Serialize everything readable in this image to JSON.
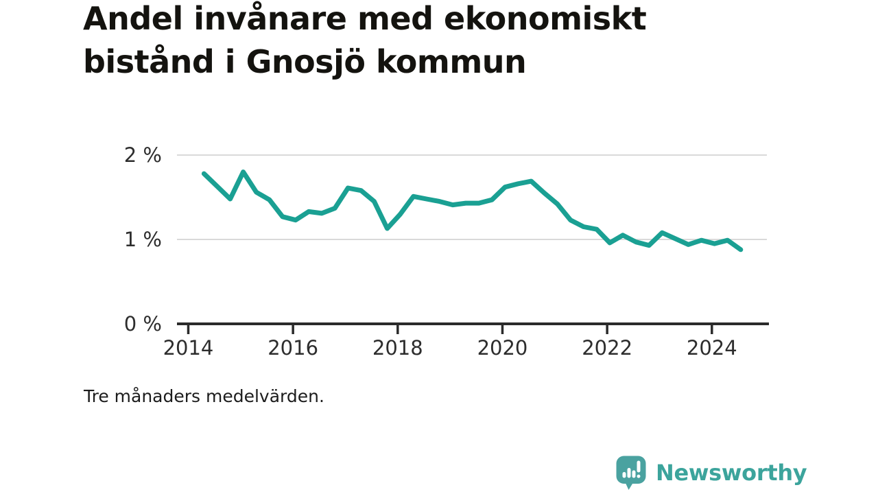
{
  "chart": {
    "title_lines": [
      "Andel invånare med ekonomiskt",
      "bistånd i Gnosjö kommun"
    ],
    "footnote": "Tre månaders medelvärden."
  },
  "branding": {
    "wordmark": "Newsworthy",
    "icon_color": "#4aa2a0",
    "icon_detail_color": "#ffffff",
    "wordmark_color": "#3ca49c"
  },
  "chart_data": {
    "type": "line",
    "title": "Andel invånare med ekonomiskt bistånd i Gnosjö kommun",
    "footnote": "Tre månaders medelvärden.",
    "unit": "%",
    "grid": "horizontal",
    "legend": "none",
    "xlim": [
      2013.784,
      2025.09
    ],
    "ylim": [
      0,
      2.13
    ],
    "x": [
      2014.3,
      2014.55,
      2014.8,
      2015.05,
      2015.3,
      2015.55,
      2015.8,
      2016.05,
      2016.3,
      2016.55,
      2016.8,
      2017.05,
      2017.3,
      2017.55,
      2017.8,
      2018.05,
      2018.3,
      2018.55,
      2018.8,
      2019.05,
      2019.3,
      2019.55,
      2019.8,
      2020.05,
      2020.3,
      2020.55,
      2020.8,
      2021.05,
      2021.3,
      2021.55,
      2021.8,
      2022.05,
      2022.3,
      2022.55,
      2022.8,
      2023.05,
      2023.3,
      2023.55,
      2023.8,
      2024.05,
      2024.3,
      2024.55
    ],
    "series": [
      {
        "name": "Andel invånare med ekonomiskt bistånd",
        "values": [
          1.78,
          1.63,
          1.48,
          1.8,
          1.56,
          1.47,
          1.27,
          1.23,
          1.33,
          1.31,
          1.37,
          1.61,
          1.58,
          1.45,
          1.13,
          1.3,
          1.51,
          1.48,
          1.45,
          1.41,
          1.43,
          1.43,
          1.47,
          1.62,
          1.66,
          1.69,
          1.55,
          1.42,
          1.23,
          1.15,
          1.12,
          0.96,
          1.05,
          0.97,
          0.93,
          1.08,
          1.01,
          0.94,
          0.99,
          0.95,
          0.99,
          0.88
        ]
      }
    ],
    "line_color": "#1aa093",
    "colors": {
      "grid": "#d9d9d9",
      "axis": "#2b2b2b",
      "label": "#2d2d2d"
    },
    "yticks": [
      {
        "value": 0,
        "label": "0 %"
      },
      {
        "value": 1,
        "label": "1 %"
      },
      {
        "value": 2,
        "label": "2 %"
      }
    ],
    "xticks": [
      {
        "value": 2014,
        "label": "2014"
      },
      {
        "value": 2016,
        "label": "2016"
      },
      {
        "value": 2018,
        "label": "2018"
      },
      {
        "value": 2020,
        "label": "2020"
      },
      {
        "value": 2022,
        "label": "2022"
      },
      {
        "value": 2024,
        "label": "2024"
      }
    ]
  }
}
